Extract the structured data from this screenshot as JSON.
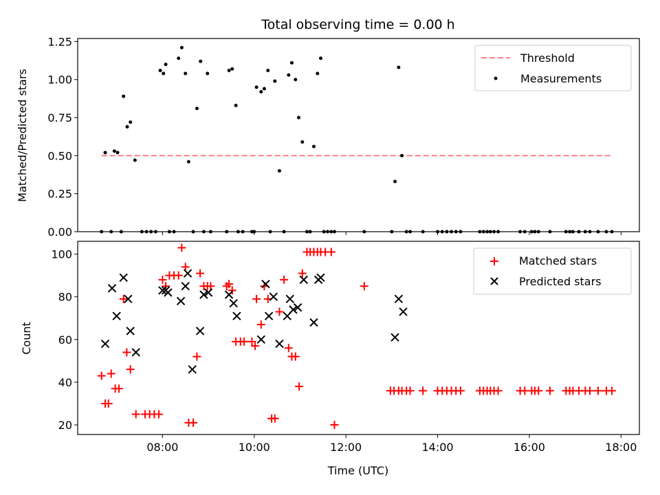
{
  "chart_data": [
    {
      "type": "scatter",
      "title": "Total observing time = 0.00 h",
      "xlabel": "",
      "ylabel": "Matched/Predicted stars",
      "xlim": [
        6.15,
        18.4
      ],
      "ylim": [
        0,
        1.27
      ],
      "yticks": [
        0.0,
        0.25,
        0.5,
        0.75,
        1.0,
        1.25
      ],
      "ytick_labels": [
        "0.00",
        "0.25",
        "0.50",
        "0.75",
        "1.00",
        "1.25"
      ],
      "xticks": [
        8,
        10,
        12,
        14,
        16,
        18
      ],
      "xtick_labels": [],
      "legend_position": "upper right",
      "threshold": {
        "name": "Threshold",
        "value": 0.5,
        "x": [
          6.67,
          17.8
        ],
        "color": "#ff7f7f",
        "style": "dashed"
      },
      "series": [
        {
          "name": "Measurements",
          "marker": "dot",
          "color": "#000000",
          "x": [
            6.67,
            6.75,
            6.88,
            6.95,
            7.02,
            7.1,
            7.15,
            7.23,
            7.3,
            7.4,
            7.55,
            7.65,
            7.75,
            7.85,
            7.95,
            8.02,
            8.07,
            8.15,
            8.25,
            8.35,
            8.42,
            8.5,
            8.57,
            8.67,
            8.75,
            8.83,
            8.9,
            8.98,
            9.05,
            9.4,
            9.45,
            9.52,
            9.6,
            9.65,
            9.75,
            9.95,
            10.0,
            10.05,
            10.15,
            10.22,
            10.3,
            10.35,
            10.45,
            10.55,
            10.65,
            10.75,
            10.82,
            10.9,
            10.97,
            11.05,
            11.15,
            11.22,
            11.3,
            11.38,
            11.45,
            11.52,
            11.6,
            11.68,
            11.75,
            12.4,
            13.0,
            13.07,
            13.15,
            13.22,
            13.32,
            13.4,
            13.68,
            14.0,
            14.1,
            14.2,
            14.3,
            14.4,
            14.5,
            14.92,
            15.0,
            15.08,
            15.15,
            15.23,
            15.32,
            15.8,
            15.9,
            16.05,
            16.12,
            16.2,
            16.45,
            16.8,
            16.88,
            16.95,
            17.08,
            17.22,
            17.32,
            17.5,
            17.68,
            17.8
          ],
          "y": [
            0.0,
            0.52,
            0.0,
            0.53,
            0.52,
            0.0,
            0.89,
            0.69,
            0.72,
            0.47,
            0.0,
            0.0,
            0.0,
            0.0,
            1.06,
            1.04,
            1.1,
            0.0,
            0.0,
            1.14,
            1.21,
            1.04,
            0.46,
            0.0,
            0.81,
            1.12,
            0.0,
            1.04,
            0.0,
            0.0,
            1.06,
            1.07,
            0.83,
            0.0,
            0.0,
            0.0,
            0.0,
            0.95,
            0.92,
            0.94,
            1.06,
            0.0,
            0.99,
            0.4,
            0.0,
            1.03,
            1.11,
            1.0,
            0.75,
            0.59,
            0.0,
            0.0,
            0.56,
            1.04,
            1.14,
            0.0,
            0.0,
            0.0,
            0.0,
            0.0,
            0.0,
            0.33,
            1.08,
            0.5,
            0.0,
            0.0,
            0.0,
            0.0,
            0.0,
            0.0,
            0.0,
            0.0,
            0.0,
            0.0,
            0.0,
            0.0,
            0.0,
            0.0,
            0.0,
            0.0,
            0.0,
            0.0,
            0.0,
            0.0,
            0.0,
            0.0,
            0.0,
            0.0,
            0.0,
            0.0,
            0.0,
            0.0,
            0.0,
            0.0
          ]
        }
      ]
    },
    {
      "type": "scatter",
      "title": "",
      "xlabel": "Time (UTC)",
      "ylabel": "Count",
      "xlim": [
        6.15,
        18.4
      ],
      "ylim": [
        15.5,
        106
      ],
      "yticks": [
        20,
        40,
        60,
        80,
        100
      ],
      "ytick_labels": [
        "20",
        "40",
        "60",
        "80",
        "100"
      ],
      "xticks": [
        8,
        10,
        12,
        14,
        16,
        18
      ],
      "xtick_labels": [
        "08:00",
        "10:00",
        "12:00",
        "14:00",
        "16:00",
        "18:00"
      ],
      "legend_position": "upper right",
      "series": [
        {
          "name": "Matched stars",
          "marker": "plus",
          "color": "#ff0000",
          "x": [
            6.67,
            6.75,
            6.82,
            6.88,
            6.97,
            7.05,
            7.15,
            7.22,
            7.3,
            7.42,
            7.62,
            7.72,
            7.82,
            7.92,
            8.0,
            8.07,
            8.15,
            8.25,
            8.35,
            8.42,
            8.5,
            8.57,
            8.67,
            8.75,
            8.82,
            8.9,
            8.98,
            9.05,
            9.4,
            9.45,
            9.52,
            9.6,
            9.7,
            9.78,
            9.95,
            10.02,
            10.05,
            10.15,
            10.22,
            10.3,
            10.38,
            10.45,
            10.55,
            10.65,
            10.75,
            10.82,
            10.9,
            10.98,
            11.05,
            11.15,
            11.22,
            11.3,
            11.38,
            11.45,
            11.55,
            11.68,
            11.75,
            12.4,
            12.97,
            13.05,
            13.15,
            13.22,
            13.32,
            13.4,
            13.68,
            14.0,
            14.1,
            14.2,
            14.3,
            14.4,
            14.5,
            14.92,
            15.0,
            15.08,
            15.15,
            15.23,
            15.32,
            15.8,
            15.9,
            16.05,
            16.12,
            16.2,
            16.45,
            16.8,
            16.88,
            16.95,
            17.08,
            17.22,
            17.32,
            17.5,
            17.68,
            17.8
          ],
          "y": [
            43,
            30,
            30,
            44,
            37,
            37,
            79,
            54,
            46,
            25,
            25,
            25,
            25,
            25,
            88,
            85,
            90,
            90,
            90,
            103,
            94,
            21,
            21,
            52,
            91,
            85,
            85,
            85,
            85,
            86,
            83,
            59,
            59,
            59,
            59,
            57,
            79,
            67,
            85,
            79,
            23,
            23,
            73,
            88,
            56,
            52,
            52,
            38,
            91,
            101,
            101,
            101,
            101,
            101,
            101,
            101,
            20,
            85,
            36,
            36,
            36,
            36,
            36,
            36,
            36,
            36,
            36,
            36,
            36,
            36,
            36,
            36,
            36,
            36,
            36,
            36,
            36,
            36,
            36,
            36,
            36,
            36,
            36,
            36,
            36,
            36,
            36,
            36,
            36,
            36,
            36,
            36
          ]
        },
        {
          "name": "Predicted stars",
          "marker": "x",
          "color": "#000000",
          "x": [
            6.75,
            6.9,
            7.0,
            7.15,
            7.25,
            7.3,
            7.42,
            8.0,
            8.07,
            8.12,
            8.4,
            8.5,
            8.55,
            8.65,
            8.82,
            8.9,
            9.0,
            9.45,
            9.55,
            9.62,
            10.15,
            10.25,
            10.32,
            10.42,
            10.55,
            10.72,
            10.78,
            10.85,
            10.95,
            11.08,
            11.3,
            11.4,
            11.45,
            13.07,
            13.15,
            13.25
          ],
          "y": [
            58,
            84,
            71,
            89,
            79,
            64,
            54,
            83,
            83,
            82,
            78,
            85,
            91,
            46,
            64,
            81,
            82,
            81,
            77,
            71,
            60,
            86,
            71,
            80,
            58,
            71,
            79,
            74,
            75,
            88,
            68,
            88,
            89,
            61,
            79,
            73
          ]
        }
      ]
    }
  ]
}
